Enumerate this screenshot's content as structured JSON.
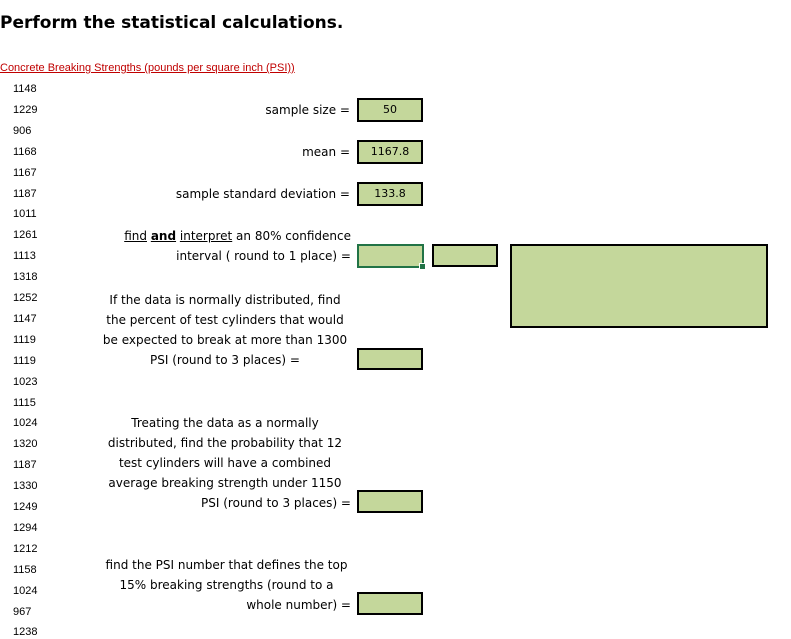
{
  "title": "Perform the statistical calculations.",
  "subtitle": "Concrete Breaking Strengths (pounds per square inch (PSI))",
  "data_values": [
    "1148",
    "1229",
    "906",
    "1168",
    "1167",
    "1187",
    "1011",
    "1261",
    "1113",
    "1318",
    "1252",
    "1147",
    "1119",
    "1119",
    "1023",
    "1115",
    "1024",
    "1320",
    "1187",
    "1330",
    "1249",
    "1294",
    "1212",
    "1158",
    "1024",
    "967",
    "1238"
  ],
  "sample_size": {
    "label": "sample size =",
    "value": "50"
  },
  "mean": {
    "label": "mean =",
    "value": "1167.8"
  },
  "std_dev": {
    "label": "sample standard deviation =",
    "value": "133.8"
  },
  "ci": {
    "find": "find",
    "and": "and",
    "interpret": "interpret",
    "rest1": "an 80% confidence",
    "line2": "interval ( round to 1 place) ="
  },
  "q_percent": {
    "lines": [
      "If the data is normally distributed, find",
      "the percent of test cylinders that would",
      "be expected to break at more than 1300",
      "PSI (round to 3 places) ="
    ]
  },
  "q_prob": {
    "lines": [
      "Treating the data as a normally",
      "distributed, find the probability that 12",
      "test cylinders will have a combined",
      "average breaking strength under 1150",
      "PSI (round to 3 places) ="
    ]
  },
  "q_top": {
    "lines": [
      "find the PSI number that defines the top",
      "15% breaking strengths (round to a",
      "whole number) ="
    ]
  },
  "colors": {
    "answer_fill": "#c4d79b",
    "subtitle_red": "#c00000",
    "selected_border": "#217346"
  }
}
